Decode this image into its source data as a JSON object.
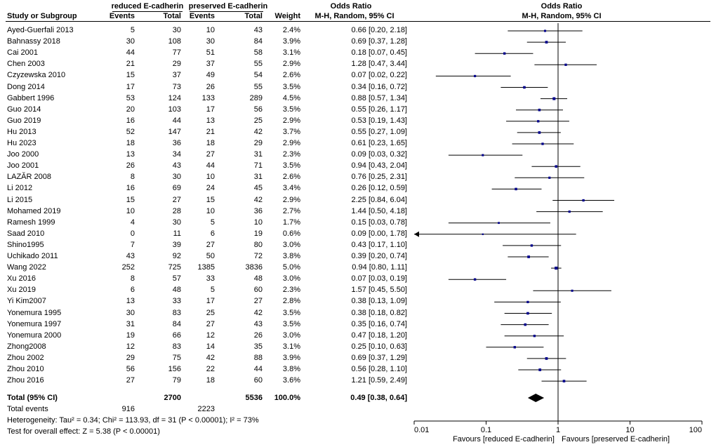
{
  "headers": {
    "reduced": "reduced E-cadherin",
    "preserved": "preserved E-cadherin",
    "odds_ratio_table": "Odds Ratio",
    "odds_ratio_plot": "Odds Ratio",
    "study": "Study or Subgroup",
    "events1": "Events",
    "total1": "Total",
    "events2": "Events",
    "total2": "Total",
    "weight": "Weight",
    "method_table": "M-H, Random, 95% CI",
    "method_plot": "M-H, Random, 95% CI"
  },
  "total": {
    "label": "Total (95% CI)",
    "total1": "2700",
    "total2": "5536",
    "weight": "100.0%",
    "ci": "0.49 [0.38, 0.64]"
  },
  "total_events": {
    "label": "Total events",
    "e1": "916",
    "e2": "2223"
  },
  "heterogeneity": "Heterogeneity: Tau² = 0.34; Chi² = 113.93, df = 31 (P < 0.00001); I² = 73%",
  "overall_effect": "Test for overall effect: Z = 5.38 (P < 0.00001)",
  "favours_left": "Favours [reduced E-cadherin]",
  "favours_right": "Favours [preserved E-cadherin]",
  "colors": {
    "square": "#00008b",
    "line": "#000000",
    "diamond": "#000000"
  },
  "chart_data": {
    "type": "forest",
    "title": "Odds Ratio",
    "subtitle": "M-H, Random, 95% CI",
    "x_scale": "log",
    "xlim": [
      0.01,
      100
    ],
    "x_ticks": [
      0.01,
      0.1,
      1,
      10,
      100
    ],
    "x_tick_labels": [
      "0.01",
      "0.1",
      "1",
      "10",
      "100"
    ],
    "null_line": 1,
    "studies": [
      {
        "name": "Ayed-Guerfali 2013",
        "e1": "5",
        "t1": "30",
        "e2": "10",
        "t2": "43",
        "weight": "2.4%",
        "or": 0.66,
        "lo": 0.2,
        "hi": 2.18,
        "ci": "0.66 [0.20, 2.18]"
      },
      {
        "name": "Bahnassy 2018",
        "e1": "30",
        "t1": "108",
        "e2": "30",
        "t2": "84",
        "weight": "3.9%",
        "or": 0.69,
        "lo": 0.37,
        "hi": 1.28,
        "ci": "0.69 [0.37, 1.28]"
      },
      {
        "name": "Cai 2001",
        "e1": "44",
        "t1": "77",
        "e2": "51",
        "t2": "58",
        "weight": "3.1%",
        "or": 0.18,
        "lo": 0.07,
        "hi": 0.45,
        "ci": "0.18 [0.07, 0.45]"
      },
      {
        "name": "Chen 2003",
        "e1": "21",
        "t1": "29",
        "e2": "37",
        "t2": "55",
        "weight": "2.9%",
        "or": 1.28,
        "lo": 0.47,
        "hi": 3.44,
        "ci": "1.28 [0.47, 3.44]"
      },
      {
        "name": "Czyzewska 2010",
        "e1": "15",
        "t1": "37",
        "e2": "49",
        "t2": "54",
        "weight": "2.6%",
        "or": 0.07,
        "lo": 0.02,
        "hi": 0.22,
        "ci": "0.07 [0.02, 0.22]"
      },
      {
        "name": "Dong 2014",
        "e1": "17",
        "t1": "73",
        "e2": "26",
        "t2": "55",
        "weight": "3.5%",
        "or": 0.34,
        "lo": 0.16,
        "hi": 0.72,
        "ci": "0.34 [0.16, 0.72]"
      },
      {
        "name": "Gabbert 1996",
        "e1": "53",
        "t1": "124",
        "e2": "133",
        "t2": "289",
        "weight": "4.5%",
        "or": 0.88,
        "lo": 0.57,
        "hi": 1.34,
        "ci": "0.88 [0.57, 1.34]"
      },
      {
        "name": "Guo 2014",
        "e1": "20",
        "t1": "103",
        "e2": "17",
        "t2": "56",
        "weight": "3.5%",
        "or": 0.55,
        "lo": 0.26,
        "hi": 1.17,
        "ci": "0.55 [0.26, 1.17]"
      },
      {
        "name": "Guo 2019",
        "e1": "16",
        "t1": "44",
        "e2": "13",
        "t2": "25",
        "weight": "2.9%",
        "or": 0.53,
        "lo": 0.19,
        "hi": 1.43,
        "ci": "0.53 [0.19, 1.43]"
      },
      {
        "name": "Hu 2013",
        "e1": "52",
        "t1": "147",
        "e2": "21",
        "t2": "42",
        "weight": "3.7%",
        "or": 0.55,
        "lo": 0.27,
        "hi": 1.09,
        "ci": "0.55 [0.27, 1.09]"
      },
      {
        "name": "Hu 2023",
        "e1": "18",
        "t1": "36",
        "e2": "18",
        "t2": "29",
        "weight": "2.9%",
        "or": 0.61,
        "lo": 0.23,
        "hi": 1.65,
        "ci": "0.61 [0.23, 1.65]"
      },
      {
        "name": "Joo 2000",
        "e1": "13",
        "t1": "34",
        "e2": "27",
        "t2": "31",
        "weight": "2.3%",
        "or": 0.09,
        "lo": 0.03,
        "hi": 0.32,
        "ci": "0.09 [0.03, 0.32]"
      },
      {
        "name": "Joo 2001",
        "e1": "26",
        "t1": "43",
        "e2": "44",
        "t2": "71",
        "weight": "3.5%",
        "or": 0.94,
        "lo": 0.43,
        "hi": 2.04,
        "ci": "0.94 [0.43, 2.04]"
      },
      {
        "name": "LAZĂR 2008",
        "e1": "8",
        "t1": "30",
        "e2": "10",
        "t2": "31",
        "weight": "2.6%",
        "or": 0.76,
        "lo": 0.25,
        "hi": 2.31,
        "ci": "0.76 [0.25, 2.31]"
      },
      {
        "name": "Li 2012",
        "e1": "16",
        "t1": "69",
        "e2": "24",
        "t2": "45",
        "weight": "3.4%",
        "or": 0.26,
        "lo": 0.12,
        "hi": 0.59,
        "ci": "0.26 [0.12, 0.59]"
      },
      {
        "name": "Li 2015",
        "e1": "15",
        "t1": "27",
        "e2": "15",
        "t2": "42",
        "weight": "2.9%",
        "or": 2.25,
        "lo": 0.84,
        "hi": 6.04,
        "ci": "2.25 [0.84, 6.04]"
      },
      {
        "name": "Mohamed 2019",
        "e1": "10",
        "t1": "28",
        "e2": "10",
        "t2": "36",
        "weight": "2.7%",
        "or": 1.44,
        "lo": 0.5,
        "hi": 4.18,
        "ci": "1.44 [0.50, 4.18]"
      },
      {
        "name": "Ramesh 1999",
        "e1": "4",
        "t1": "30",
        "e2": "5",
        "t2": "10",
        "weight": "1.7%",
        "or": 0.15,
        "lo": 0.03,
        "hi": 0.78,
        "ci": "0.15 [0.03, 0.78]"
      },
      {
        "name": "Saad 2010",
        "e1": "0",
        "t1": "11",
        "e2": "6",
        "t2": "19",
        "weight": "0.6%",
        "or": 0.09,
        "lo": 0.0,
        "hi": 1.78,
        "ci": "0.09 [0.00, 1.78]"
      },
      {
        "name": "Shino1995",
        "e1": "7",
        "t1": "39",
        "e2": "27",
        "t2": "80",
        "weight": "3.0%",
        "or": 0.43,
        "lo": 0.17,
        "hi": 1.1,
        "ci": "0.43 [0.17, 1.10]"
      },
      {
        "name": "Uchikado  2011",
        "e1": "43",
        "t1": "92",
        "e2": "50",
        "t2": "72",
        "weight": "3.8%",
        "or": 0.39,
        "lo": 0.2,
        "hi": 0.74,
        "ci": "0.39 [0.20, 0.74]"
      },
      {
        "name": "Wang 2022",
        "e1": "252",
        "t1": "725",
        "e2": "1385",
        "t2": "3836",
        "weight": "5.0%",
        "or": 0.94,
        "lo": 0.8,
        "hi": 1.11,
        "ci": "0.94 [0.80, 1.11]"
      },
      {
        "name": "Xu 2016",
        "e1": "8",
        "t1": "57",
        "e2": "33",
        "t2": "48",
        "weight": "3.0%",
        "or": 0.07,
        "lo": 0.03,
        "hi": 0.19,
        "ci": "0.07 [0.03, 0.19]"
      },
      {
        "name": "Xu 2019",
        "e1": "6",
        "t1": "48",
        "e2": "5",
        "t2": "60",
        "weight": "2.3%",
        "or": 1.57,
        "lo": 0.45,
        "hi": 5.5,
        "ci": "1.57 [0.45, 5.50]"
      },
      {
        "name": "Yi Kim2007",
        "e1": "13",
        "t1": "33",
        "e2": "17",
        "t2": "27",
        "weight": "2.8%",
        "or": 0.38,
        "lo": 0.13,
        "hi": 1.09,
        "ci": "0.38 [0.13, 1.09]"
      },
      {
        "name": "Yonemura 1995",
        "e1": "30",
        "t1": "83",
        "e2": "25",
        "t2": "42",
        "weight": "3.5%",
        "or": 0.38,
        "lo": 0.18,
        "hi": 0.82,
        "ci": "0.38 [0.18, 0.82]"
      },
      {
        "name": "Yonemura 1997",
        "e1": "31",
        "t1": "84",
        "e2": "27",
        "t2": "43",
        "weight": "3.5%",
        "or": 0.35,
        "lo": 0.16,
        "hi": 0.74,
        "ci": "0.35 [0.16, 0.74]"
      },
      {
        "name": "Yonemura 2000",
        "e1": "19",
        "t1": "66",
        "e2": "12",
        "t2": "26",
        "weight": "3.0%",
        "or": 0.47,
        "lo": 0.18,
        "hi": 1.2,
        "ci": "0.47 [0.18, 1.20]"
      },
      {
        "name": "Zhong2008",
        "e1": "12",
        "t1": "83",
        "e2": "14",
        "t2": "35",
        "weight": "3.1%",
        "or": 0.25,
        "lo": 0.1,
        "hi": 0.63,
        "ci": "0.25 [0.10, 0.63]"
      },
      {
        "name": "Zhou 2002",
        "e1": "29",
        "t1": "75",
        "e2": "42",
        "t2": "88",
        "weight": "3.9%",
        "or": 0.69,
        "lo": 0.37,
        "hi": 1.29,
        "ci": "0.69 [0.37, 1.29]"
      },
      {
        "name": "Zhou 2010",
        "e1": "56",
        "t1": "156",
        "e2": "22",
        "t2": "44",
        "weight": "3.8%",
        "or": 0.56,
        "lo": 0.28,
        "hi": 1.1,
        "ci": "0.56 [0.28, 1.10]"
      },
      {
        "name": "Zhou 2016",
        "e1": "27",
        "t1": "79",
        "e2": "18",
        "t2": "60",
        "weight": "3.6%",
        "or": 1.21,
        "lo": 0.59,
        "hi": 2.49,
        "ci": "1.21 [0.59, 2.49]"
      }
    ],
    "pooled": {
      "or": 0.49,
      "lo": 0.38,
      "hi": 0.64
    }
  }
}
